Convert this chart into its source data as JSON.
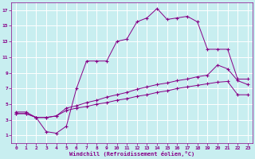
{
  "xlabel": "Windchill (Refroidissement éolien,°C)",
  "bg_color": "#c8eef0",
  "line_color": "#880088",
  "grid_color": "#ffffff",
  "xlim": [
    -0.5,
    23.5
  ],
  "ylim": [
    0,
    18
  ],
  "xticks": [
    0,
    1,
    2,
    3,
    4,
    5,
    6,
    7,
    8,
    9,
    10,
    11,
    12,
    13,
    14,
    15,
    16,
    17,
    18,
    19,
    20,
    21,
    22,
    23
  ],
  "yticks": [
    1,
    3,
    5,
    7,
    9,
    11,
    13,
    15,
    17
  ],
  "curve1_x": [
    0,
    1,
    2,
    3,
    4,
    5,
    6,
    7,
    8,
    9,
    10,
    11,
    12,
    13,
    14,
    15,
    16,
    17,
    18,
    19,
    20,
    21,
    22,
    23
  ],
  "curve1_y": [
    4,
    4,
    3.3,
    1.5,
    1.3,
    2.2,
    7.0,
    10.5,
    10.5,
    10.5,
    13.0,
    13.3,
    15.5,
    16.0,
    17.2,
    15.8,
    16.0,
    16.2,
    15.5,
    12.0,
    12.0,
    12.0,
    8.2,
    8.2
  ],
  "curve2_x": [
    0,
    1,
    2,
    3,
    4,
    5,
    6,
    7,
    8,
    9,
    10,
    11,
    12,
    13,
    14,
    15,
    16,
    17,
    18,
    19,
    20,
    21,
    22,
    23
  ],
  "curve2_y": [
    3.8,
    3.8,
    3.3,
    3.3,
    3.5,
    4.5,
    4.8,
    5.2,
    5.5,
    5.9,
    6.2,
    6.5,
    6.9,
    7.2,
    7.5,
    7.7,
    8.0,
    8.2,
    8.5,
    8.7,
    10.0,
    9.5,
    8.0,
    7.5
  ],
  "curve3_x": [
    0,
    1,
    2,
    3,
    4,
    5,
    6,
    7,
    8,
    9,
    10,
    11,
    12,
    13,
    14,
    15,
    16,
    17,
    18,
    19,
    20,
    21,
    22,
    23
  ],
  "curve3_y": [
    3.8,
    3.8,
    3.3,
    3.3,
    3.5,
    4.2,
    4.5,
    4.7,
    5.0,
    5.2,
    5.5,
    5.7,
    6.0,
    6.2,
    6.5,
    6.7,
    7.0,
    7.2,
    7.4,
    7.6,
    7.8,
    7.9,
    6.2,
    6.2
  ]
}
